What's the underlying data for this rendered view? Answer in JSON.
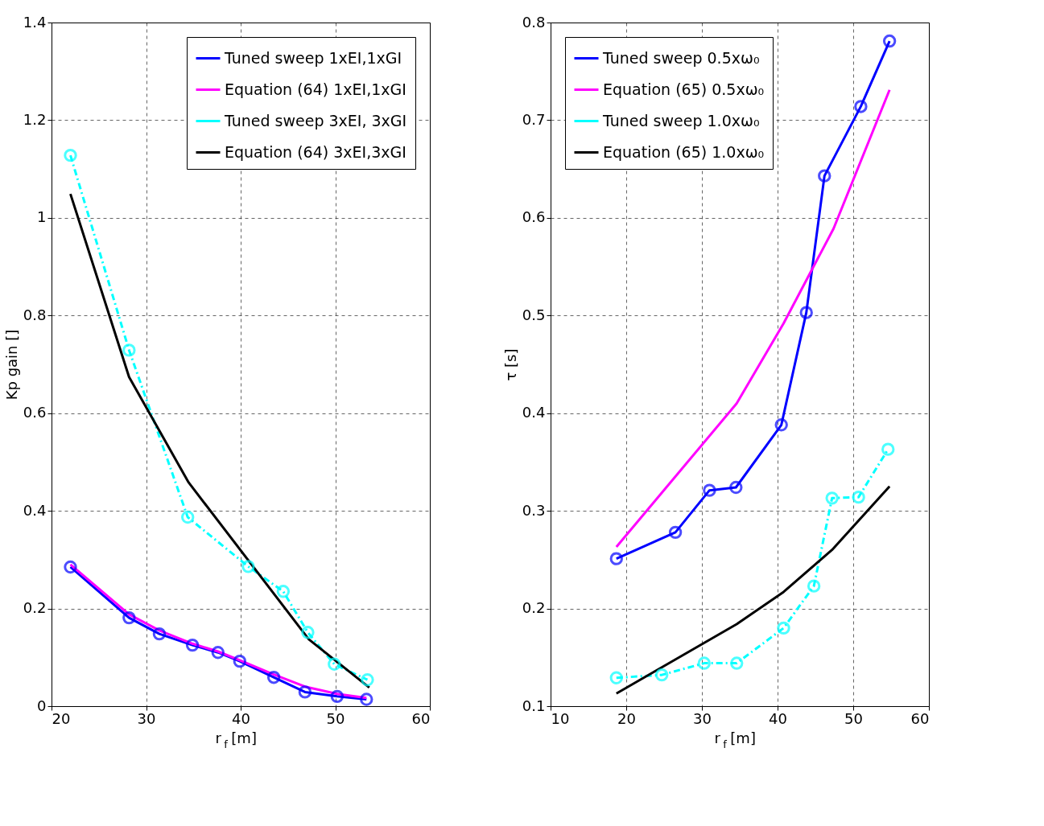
{
  "chart_data": [
    {
      "type": "line",
      "xlabel": "r$_{f}$ [m]",
      "ylabel": "Kp gain []",
      "xlim": [
        20,
        60
      ],
      "xticks": [
        20,
        30,
        40,
        50,
        60
      ],
      "ylim": [
        0,
        1.4
      ],
      "yticks": [
        0,
        0.2,
        0.4,
        0.6,
        0.8,
        1,
        1.2,
        1.4
      ],
      "grid": true,
      "legend": "top right",
      "series": [
        {
          "name": "Tuned sweep 1xEI,1xGI",
          "color": "#0000ff",
          "marker": "circle",
          "line_style": "solid",
          "x": [
            22.0,
            28.2,
            31.4,
            34.9,
            37.6,
            39.9,
            43.5,
            46.8,
            50.2,
            53.3
          ],
          "values": [
            0.285,
            0.181,
            0.148,
            0.125,
            0.11,
            0.092,
            0.059,
            0.029,
            0.02,
            0.014
          ]
        },
        {
          "name": "Equation (64) 1xEI,1xGI",
          "color": "#ff00ff",
          "line_style": "solid",
          "x": [
            22.0,
            28.2,
            31.4,
            34.9,
            37.6,
            39.9,
            43.5,
            46.8,
            50.2,
            53.3
          ],
          "values": [
            0.29,
            0.188,
            0.155,
            0.128,
            0.112,
            0.094,
            0.065,
            0.04,
            0.025,
            0.017
          ]
        },
        {
          "name": "Tuned sweep 3xEI, 3xGI",
          "color": "#00ffff",
          "marker": "circle",
          "line_style": "dashed",
          "x": [
            22.0,
            28.2,
            34.4,
            40.8,
            44.5,
            47.1,
            49.9,
            53.4
          ],
          "values": [
            1.128,
            0.729,
            0.387,
            0.286,
            0.235,
            0.151,
            0.086,
            0.054
          ]
        },
        {
          "name": "Equation (64) 3xEI,3xGI",
          "color": "#000000",
          "line_style": "solid",
          "x": [
            22.0,
            28.2,
            34.5,
            47.2,
            53.6
          ],
          "values": [
            1.049,
            0.674,
            0.458,
            0.137,
            0.038
          ]
        }
      ]
    },
    {
      "type": "line",
      "xlabel": "r$_{f}$ [m]",
      "ylabel": "τ [s]",
      "xlim": [
        10,
        60
      ],
      "xticks": [
        10,
        20,
        30,
        40,
        50,
        60
      ],
      "ylim": [
        0.1,
        0.8
      ],
      "yticks": [
        0.1,
        0.2,
        0.3,
        0.4,
        0.5,
        0.6,
        0.7,
        0.8
      ],
      "grid": true,
      "legend": "top left",
      "series": [
        {
          "name": "Tuned sweep 0.5xω₀",
          "color": "#0000ff",
          "marker": "circle",
          "line_style": "solid",
          "x": [
            18.7,
            26.5,
            31.0,
            34.5,
            40.5,
            43.8,
            46.2,
            51.0,
            54.8
          ],
          "values": [
            0.251,
            0.278,
            0.321,
            0.324,
            0.388,
            0.503,
            0.643,
            0.714,
            0.781
          ]
        },
        {
          "name": "Equation (65) 0.5xω₀",
          "color": "#ff00ff",
          "line_style": "solid",
          "x": [
            18.7,
            34.6,
            40.8,
            47.4,
            54.8
          ],
          "values": [
            0.263,
            0.41,
            0.492,
            0.589,
            0.731
          ]
        },
        {
          "name": "Tuned sweep 1.0xω₀",
          "color": "#00ffff",
          "marker": "circle",
          "line_style": "dashed",
          "x": [
            18.7,
            24.7,
            30.3,
            34.6,
            40.8,
            44.8,
            47.2,
            50.7,
            54.6
          ],
          "values": [
            0.129,
            0.132,
            0.144,
            0.144,
            0.18,
            0.223,
            0.313,
            0.314,
            0.363
          ]
        },
        {
          "name": "Equation (65) 1.0xω₀",
          "color": "#000000",
          "line_style": "solid",
          "x": [
            18.7,
            34.6,
            40.8,
            47.2,
            54.8
          ],
          "values": [
            0.113,
            0.184,
            0.217,
            0.26,
            0.325
          ]
        }
      ]
    }
  ]
}
